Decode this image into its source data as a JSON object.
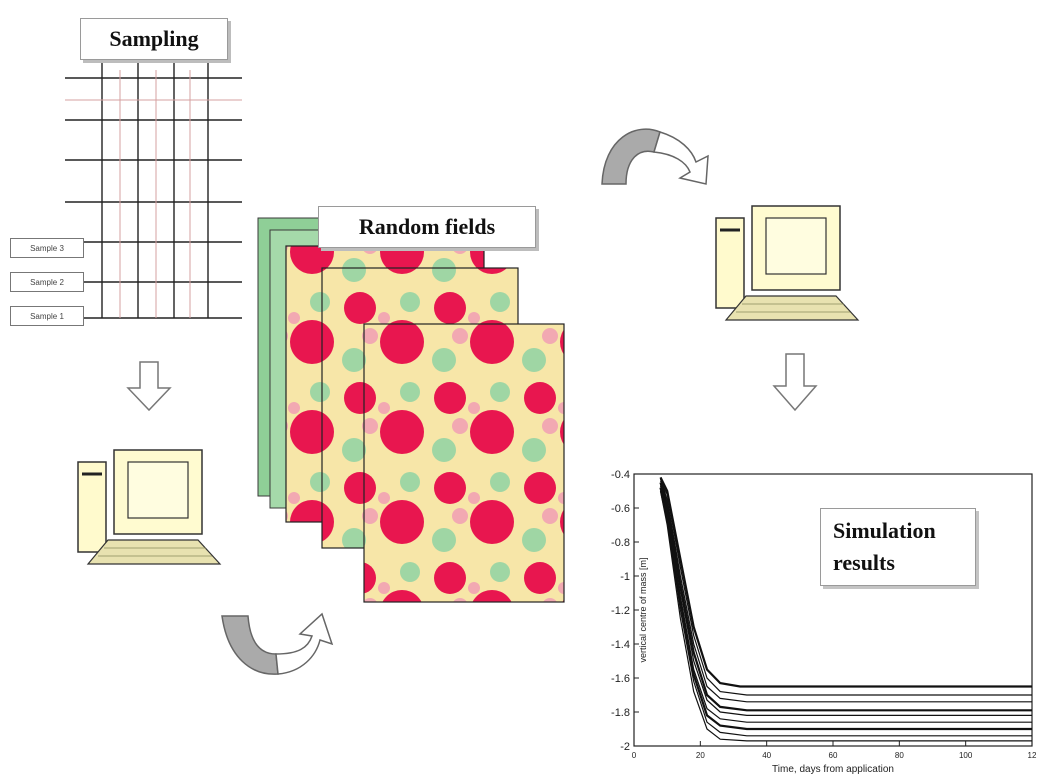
{
  "labels": {
    "sampling": "Sampling",
    "random_fields": "Random fields",
    "simulation_results": "Simulation\nresults"
  },
  "samples": [
    "Sample 3",
    "Sample 2",
    "Sample 1"
  ],
  "chart_data": {
    "type": "line",
    "title": "",
    "xlabel": "Time, days from application",
    "ylabel": "vertical centre of mass [m]",
    "xlim": [
      0,
      120
    ],
    "ylim": [
      -2.0,
      -0.4
    ],
    "x_ticks": [
      "0",
      "20",
      "40",
      "60",
      "80",
      "100",
      "12"
    ],
    "y_ticks": [
      "-0.4",
      "-0.6",
      "-0.8",
      "-1",
      "-1.2",
      "-1.4",
      "-1.6",
      "-1.8",
      "-2"
    ],
    "series": [
      {
        "x": [
          8,
          10,
          14,
          18,
          22,
          26,
          32,
          120
        ],
        "values": [
          -0.42,
          -0.5,
          -0.9,
          -1.3,
          -1.55,
          -1.63,
          -1.65,
          -1.65
        ]
      },
      {
        "x": [
          8,
          10,
          14,
          18,
          22,
          26,
          34,
          120
        ],
        "values": [
          -0.44,
          -0.52,
          -0.95,
          -1.35,
          -1.6,
          -1.68,
          -1.7,
          -1.7
        ]
      },
      {
        "x": [
          8,
          10,
          14,
          18,
          22,
          26,
          34,
          120
        ],
        "values": [
          -0.43,
          -0.55,
          -1.0,
          -1.4,
          -1.65,
          -1.72,
          -1.74,
          -1.74
        ]
      },
      {
        "x": [
          8,
          10,
          14,
          18,
          22,
          26,
          34,
          120
        ],
        "values": [
          -0.45,
          -0.58,
          -1.05,
          -1.45,
          -1.7,
          -1.77,
          -1.79,
          -1.79
        ]
      },
      {
        "x": [
          8,
          10,
          14,
          18,
          22,
          26,
          34,
          120
        ],
        "values": [
          -0.46,
          -0.6,
          -1.08,
          -1.5,
          -1.73,
          -1.8,
          -1.82,
          -1.82
        ]
      },
      {
        "x": [
          8,
          10,
          14,
          18,
          22,
          26,
          34,
          120
        ],
        "values": [
          -0.47,
          -0.62,
          -1.12,
          -1.55,
          -1.78,
          -1.84,
          -1.86,
          -1.86
        ]
      },
      {
        "x": [
          8,
          10,
          14,
          18,
          22,
          26,
          34,
          120
        ],
        "values": [
          -0.48,
          -0.65,
          -1.15,
          -1.58,
          -1.82,
          -1.88,
          -1.9,
          -1.9
        ]
      },
      {
        "x": [
          8,
          10,
          14,
          18,
          22,
          26,
          34,
          120
        ],
        "values": [
          -0.5,
          -0.68,
          -1.2,
          -1.62,
          -1.86,
          -1.92,
          -1.94,
          -1.94
        ]
      },
      {
        "x": [
          8,
          10,
          14,
          18,
          22,
          26,
          34,
          120
        ],
        "values": [
          -0.5,
          -0.7,
          -1.25,
          -1.68,
          -1.9,
          -1.96,
          -1.97,
          -1.97
        ]
      }
    ]
  }
}
